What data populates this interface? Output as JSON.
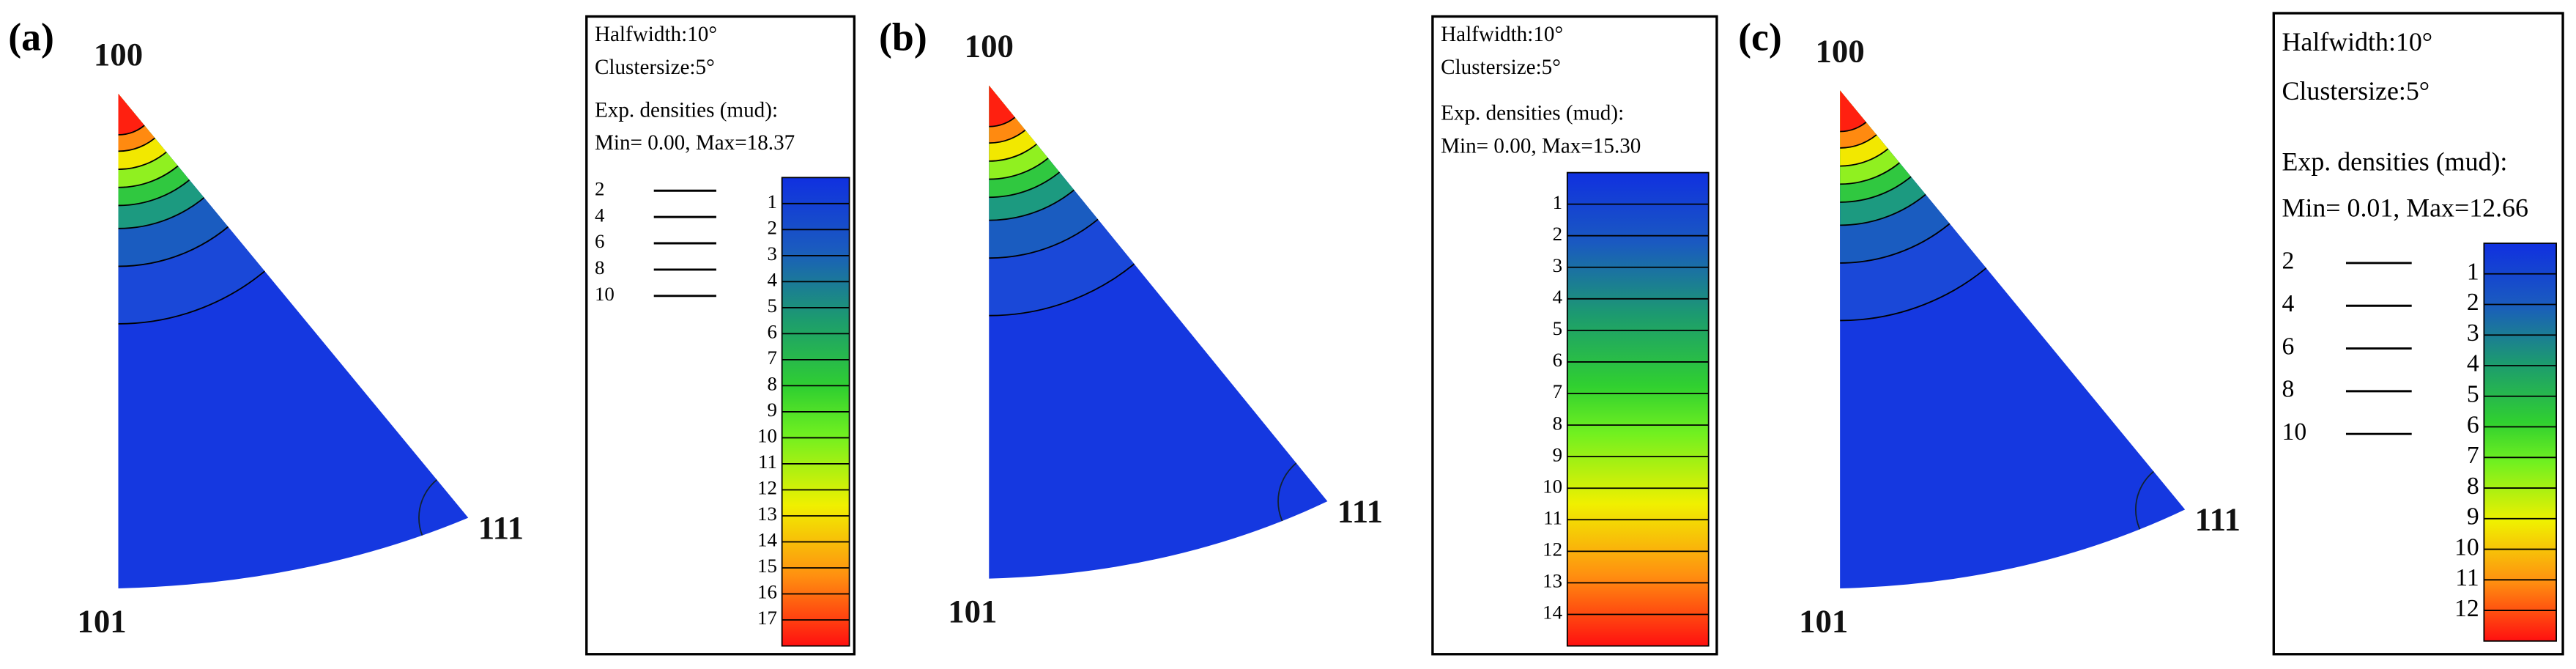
{
  "panels": [
    {
      "label": "(a)",
      "corners": [
        "100",
        "101",
        "111"
      ],
      "halfwidth": "Halfwidth:10°",
      "clustersize": "Clustersize:5°",
      "densities": "Exp. densities (mud):",
      "range": "Min= 0.00, Max=18.37",
      "contour_labels": [
        "2",
        "4",
        "6",
        "8",
        "10"
      ],
      "scale": [
        "1",
        "2",
        "3",
        "4",
        "5",
        "6",
        "7",
        "8",
        "9",
        "10",
        "11",
        "12",
        "13",
        "14",
        "15",
        "16",
        "17"
      ]
    },
    {
      "label": "(b)",
      "corners": [
        "100",
        "101",
        "111"
      ],
      "halfwidth": "Halfwidth:10°",
      "clustersize": "Clustersize:5°",
      "densities": "Exp. densities (mud):",
      "range": "Min= 0.00, Max=15.30",
      "scale": [
        "1",
        "2",
        "3",
        "4",
        "5",
        "6",
        "7",
        "8",
        "9",
        "10",
        "11",
        "12",
        "13",
        "14"
      ]
    },
    {
      "label": "(c)",
      "corners": [
        "100",
        "101",
        "111"
      ],
      "halfwidth": "Halfwidth:10°",
      "clustersize": "Clustersize:5°",
      "densities": "Exp. densities (mud):",
      "range": "Min= 0.01, Max=12.66",
      "contour_labels": [
        "2",
        "4",
        "6",
        "8",
        "10"
      ],
      "scale": [
        "1",
        "2",
        "3",
        "4",
        "5",
        "6",
        "7",
        "8",
        "9",
        "10",
        "11",
        "12"
      ]
    }
  ]
}
